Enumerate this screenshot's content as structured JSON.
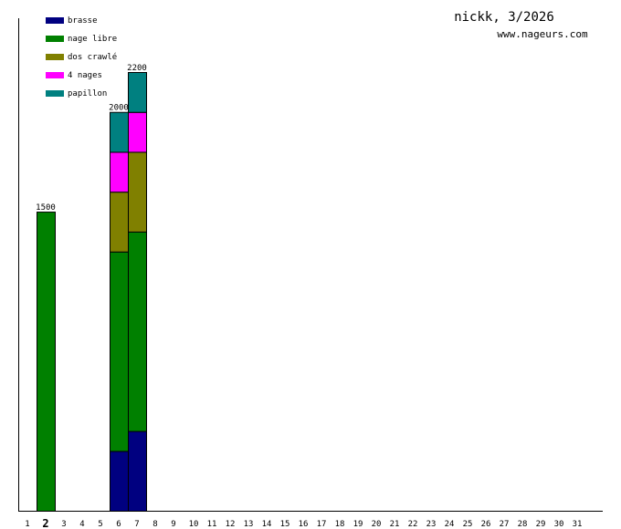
{
  "header": {
    "title": "nickk, 3/2026",
    "site": "www.nageurs.com"
  },
  "chart_data": {
    "type": "bar",
    "stacked": true,
    "title": "nickk, 3/2026",
    "xlabel": "",
    "ylabel": "",
    "categories": [
      "1",
      "2",
      "3",
      "4",
      "5",
      "6",
      "7",
      "8",
      "9",
      "10",
      "11",
      "12",
      "13",
      "14",
      "15",
      "16",
      "17",
      "18",
      "19",
      "20",
      "21",
      "22",
      "23",
      "24",
      "25",
      "26",
      "27",
      "28",
      "29",
      "30",
      "31"
    ],
    "highlight_category": "2",
    "ylim": [
      0,
      2200
    ],
    "grid": false,
    "legend_position": "top-left",
    "series": [
      {
        "name": "brasse",
        "color": "#000080",
        "values": [
          0,
          0,
          0,
          0,
          0,
          300,
          400,
          0,
          0,
          0,
          0,
          0,
          0,
          0,
          0,
          0,
          0,
          0,
          0,
          0,
          0,
          0,
          0,
          0,
          0,
          0,
          0,
          0,
          0,
          0,
          0
        ]
      },
      {
        "name": "nage libre",
        "color": "#008000",
        "values": [
          0,
          1500,
          0,
          0,
          0,
          1000,
          1000,
          0,
          0,
          0,
          0,
          0,
          0,
          0,
          0,
          0,
          0,
          0,
          0,
          0,
          0,
          0,
          0,
          0,
          0,
          0,
          0,
          0,
          0,
          0,
          0
        ]
      },
      {
        "name": "dos crawlé",
        "color": "#808000",
        "values": [
          0,
          0,
          0,
          0,
          0,
          300,
          400,
          0,
          0,
          0,
          0,
          0,
          0,
          0,
          0,
          0,
          0,
          0,
          0,
          0,
          0,
          0,
          0,
          0,
          0,
          0,
          0,
          0,
          0,
          0,
          0
        ]
      },
      {
        "name": "4 nages",
        "color": "#ff00ff",
        "values": [
          0,
          0,
          0,
          0,
          0,
          200,
          200,
          0,
          0,
          0,
          0,
          0,
          0,
          0,
          0,
          0,
          0,
          0,
          0,
          0,
          0,
          0,
          0,
          0,
          0,
          0,
          0,
          0,
          0,
          0,
          0
        ]
      },
      {
        "name": "papillon",
        "color": "#008080",
        "values": [
          0,
          0,
          0,
          0,
          0,
          200,
          200,
          0,
          0,
          0,
          0,
          0,
          0,
          0,
          0,
          0,
          0,
          0,
          0,
          0,
          0,
          0,
          0,
          0,
          0,
          0,
          0,
          0,
          0,
          0,
          0
        ]
      }
    ],
    "totals": [
      {
        "category": "2",
        "label": "1500"
      },
      {
        "category": "6",
        "label": "2000"
      },
      {
        "category": "7",
        "label": "2200"
      }
    ]
  }
}
